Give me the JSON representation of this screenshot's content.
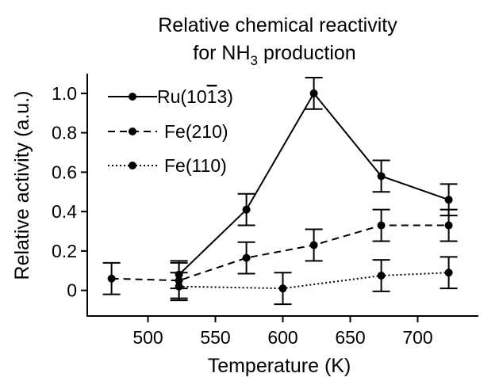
{
  "chart_data": {
    "type": "line",
    "title_line1": "Relative chemical reactivity",
    "title_line2_pre": "for NH",
    "title_line2_sub": "3",
    "title_line2_post": " production",
    "xlabel": "Temperature (K)",
    "ylabel": "Relative activity (a.u.)",
    "xlim": [
      455,
      745
    ],
    "ylim": [
      -0.13,
      1.1
    ],
    "xticks": [
      500,
      550,
      600,
      650,
      700
    ],
    "yticks": [
      0,
      0.2,
      0.4,
      0.6,
      0.8,
      1.0
    ],
    "ytick_labels": [
      "0",
      "0.2",
      "0.4",
      "0.6",
      "0.8",
      "1.0"
    ],
    "legend_position": "top-left",
    "series": [
      {
        "name": "Ru(1013)",
        "name_pre": "Ru(10",
        "name_bar": "1",
        "name_post": "3)",
        "style": "solid",
        "x": [
          523,
          573,
          623,
          673,
          723
        ],
        "y": [
          0.08,
          0.41,
          1.0,
          0.58,
          0.46
        ],
        "err": [
          0.07,
          0.08,
          0.08,
          0.08,
          0.08
        ]
      },
      {
        "name": "Fe(210)",
        "style": "dashed",
        "x": [
          473,
          523,
          573,
          623,
          673,
          723
        ],
        "y": [
          0.06,
          0.05,
          0.165,
          0.23,
          0.33,
          0.33
        ],
        "err": [
          0.08,
          0.09,
          0.08,
          0.08,
          0.08,
          0.08
        ]
      },
      {
        "name": "Fe(110)",
        "style": "dotted",
        "x": [
          523,
          600,
          673,
          723
        ],
        "y": [
          0.02,
          0.01,
          0.075,
          0.09
        ],
        "err": [
          0.07,
          0.08,
          0.08,
          0.08
        ]
      }
    ]
  }
}
